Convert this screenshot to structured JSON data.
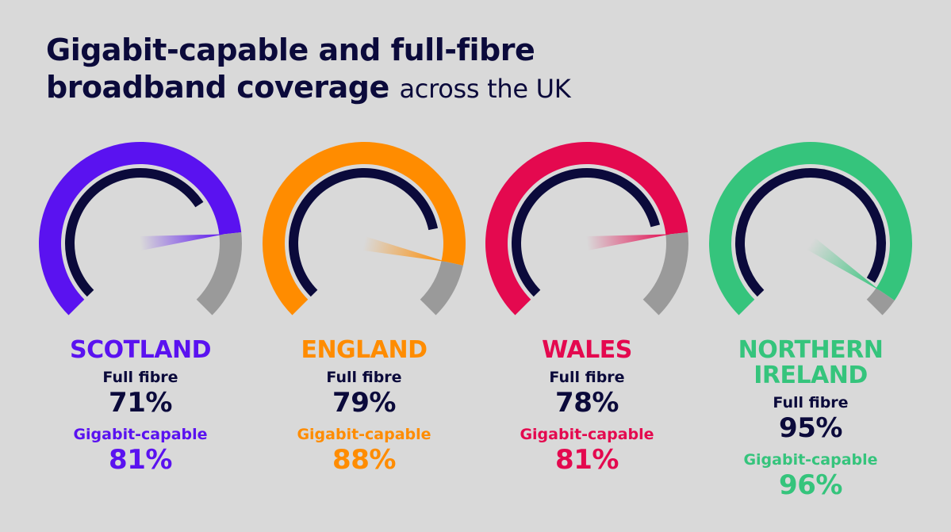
{
  "title_line1": "Gigabit-capable and full-fibre",
  "title_line2": "broadband coverage",
  "title_suffix": "across the UK",
  "colors": {
    "background": "#d9d9d9",
    "navy": "#0b0a3b",
    "grey": "#9a9a9a",
    "scotland": "#5a12f0",
    "england": "#ff8c00",
    "wales": "#e4094f",
    "northern_ireland": "#35c47c"
  },
  "labels": {
    "full_fibre": "Full fibre",
    "gigabit": "Gigabit-capable"
  },
  "chart_data": {
    "type": "gauge",
    "title": "Gigabit-capable and full-fibre broadband coverage across the UK",
    "unit": "%",
    "range": [
      0,
      100
    ],
    "series": [
      {
        "name": "Full fibre"
      },
      {
        "name": "Gigabit-capable"
      }
    ],
    "regions": [
      {
        "name": "SCOTLAND",
        "name_lines": [
          "SCOTLAND"
        ],
        "color": "#5a12f0",
        "full_fibre": 71,
        "gigabit": 81,
        "full_fibre_text": "71%",
        "gigabit_text": "81%"
      },
      {
        "name": "ENGLAND",
        "name_lines": [
          "ENGLAND"
        ],
        "color": "#ff8c00",
        "full_fibre": 79,
        "gigabit": 88,
        "full_fibre_text": "79%",
        "gigabit_text": "88%"
      },
      {
        "name": "WALES",
        "name_lines": [
          "WALES"
        ],
        "color": "#e4094f",
        "full_fibre": 78,
        "gigabit": 81,
        "full_fibre_text": "78%",
        "gigabit_text": "81%"
      },
      {
        "name": "NORTHERN IRELAND",
        "name_lines": [
          "NORTHERN",
          "IRELAND"
        ],
        "color": "#35c47c",
        "full_fibre": 95,
        "gigabit": 96,
        "full_fibre_text": "95%",
        "gigabit_text": "96%"
      }
    ]
  }
}
